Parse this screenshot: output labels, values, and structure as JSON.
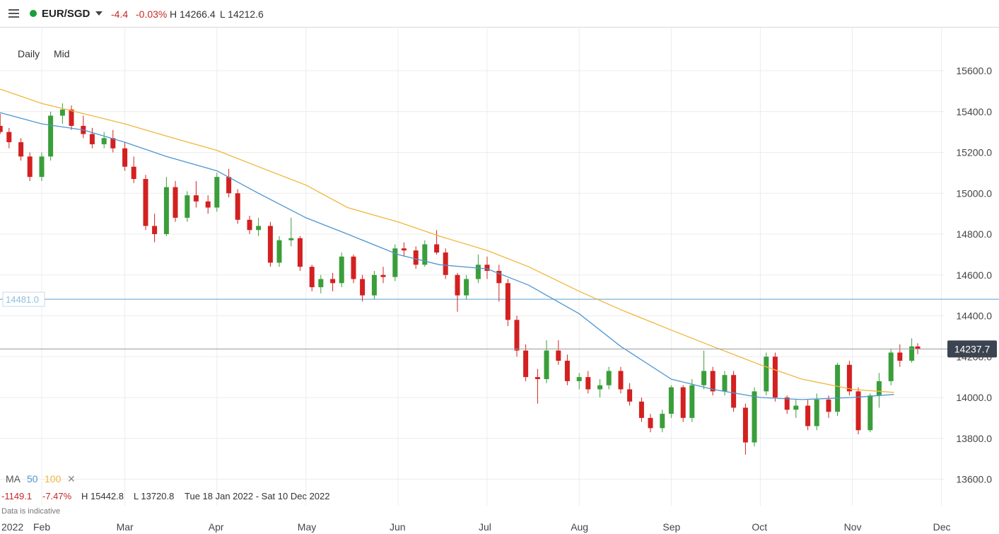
{
  "header": {
    "symbol": "EUR/SGD",
    "change": "-4.4",
    "change_pct": "-0.03%",
    "high": "H 14266.4",
    "low": "L 14212.6"
  },
  "controls": {
    "interval": "Daily",
    "price_type": "Mid"
  },
  "colors": {
    "up": "#3a9e3a",
    "down": "#d32020",
    "ma50": "#4e96d1",
    "ma100": "#f2b53a",
    "hline": "#8fbfe0"
  },
  "legend": {
    "ma_label": "MA",
    "ma50": "50",
    "ma100": "100",
    "remove_icon": "close-icon"
  },
  "stats": {
    "change": "-1149.1",
    "change_pct": "-7.47%",
    "high": "H 15442.8",
    "low": "L 13720.8",
    "range": "Tue 18 Jan 2022 - Sat 10 Dec 2022"
  },
  "note": "Data is indicative",
  "chart_data": {
    "type": "candlestick",
    "ylim": [
      13500,
      15700
    ],
    "y_ticks": [
      "13600.0",
      "13800.0",
      "14000.0",
      "14200.0",
      "14400.0",
      "14600.0",
      "14800.0",
      "15000.0",
      "15200.0",
      "15400.0",
      "15600.0"
    ],
    "x_ticks": [
      "2022",
      "Feb",
      "Mar",
      "Apr",
      "May",
      "Jun",
      "Jul",
      "Aug",
      "Sep",
      "Oct",
      "Nov",
      "Dec"
    ],
    "horizontal_line": {
      "value": 14481.0,
      "label": "14481.0"
    },
    "current_price": {
      "value": 14237.7,
      "label": "14237.7"
    },
    "series": [
      {
        "name": "MA 50",
        "type": "line",
        "values": [
          {
            "x": "2022-01-18",
            "y": 15395
          },
          {
            "x": "2022-02-01",
            "y": 15340
          },
          {
            "x": "2022-02-15",
            "y": 15310
          },
          {
            "x": "2022-03-01",
            "y": 15250
          },
          {
            "x": "2022-03-15",
            "y": 15180
          },
          {
            "x": "2022-04-01",
            "y": 15110
          },
          {
            "x": "2022-04-15",
            "y": 15000
          },
          {
            "x": "2022-05-01",
            "y": 14880
          },
          {
            "x": "2022-05-15",
            "y": 14800
          },
          {
            "x": "2022-06-01",
            "y": 14700
          },
          {
            "x": "2022-06-15",
            "y": 14650
          },
          {
            "x": "2022-07-01",
            "y": 14630
          },
          {
            "x": "2022-07-15",
            "y": 14550
          },
          {
            "x": "2022-08-01",
            "y": 14410
          },
          {
            "x": "2022-08-15",
            "y": 14250
          },
          {
            "x": "2022-09-01",
            "y": 14090
          },
          {
            "x": "2022-09-15",
            "y": 14040
          },
          {
            "x": "2022-10-01",
            "y": 14000
          },
          {
            "x": "2022-10-15",
            "y": 13990
          },
          {
            "x": "2022-11-01",
            "y": 14000
          },
          {
            "x": "2022-11-15",
            "y": 14015
          }
        ]
      },
      {
        "name": "MA 100",
        "type": "line",
        "values": [
          {
            "x": "2022-01-18",
            "y": 15510
          },
          {
            "x": "2022-02-01",
            "y": 15440
          },
          {
            "x": "2022-02-15",
            "y": 15390
          },
          {
            "x": "2022-03-01",
            "y": 15340
          },
          {
            "x": "2022-03-15",
            "y": 15280
          },
          {
            "x": "2022-04-01",
            "y": 15210
          },
          {
            "x": "2022-04-15",
            "y": 15130
          },
          {
            "x": "2022-05-01",
            "y": 15040
          },
          {
            "x": "2022-05-15",
            "y": 14930
          },
          {
            "x": "2022-06-01",
            "y": 14860
          },
          {
            "x": "2022-06-15",
            "y": 14790
          },
          {
            "x": "2022-07-01",
            "y": 14720
          },
          {
            "x": "2022-07-15",
            "y": 14640
          },
          {
            "x": "2022-08-01",
            "y": 14520
          },
          {
            "x": "2022-08-15",
            "y": 14430
          },
          {
            "x": "2022-09-01",
            "y": 14330
          },
          {
            "x": "2022-09-15",
            "y": 14250
          },
          {
            "x": "2022-10-01",
            "y": 14160
          },
          {
            "x": "2022-10-15",
            "y": 14090
          },
          {
            "x": "2022-11-01",
            "y": 14040
          },
          {
            "x": "2022-11-15",
            "y": 14025
          }
        ]
      }
    ],
    "candles": [
      {
        "x": "2022-01-18",
        "o": 15330,
        "h": 15390,
        "l": 15290,
        "c": 15300
      },
      {
        "x": "2022-01-21",
        "o": 15300,
        "h": 15320,
        "l": 15220,
        "c": 15250
      },
      {
        "x": "2022-01-25",
        "o": 15250,
        "h": 15270,
        "l": 15160,
        "c": 15180
      },
      {
        "x": "2022-01-28",
        "o": 15180,
        "h": 15200,
        "l": 15060,
        "c": 15080
      },
      {
        "x": "2022-02-01",
        "o": 15080,
        "h": 15200,
        "l": 15060,
        "c": 15180
      },
      {
        "x": "2022-02-04",
        "o": 15180,
        "h": 15400,
        "l": 15160,
        "c": 15380
      },
      {
        "x": "2022-02-08",
        "o": 15380,
        "h": 15440,
        "l": 15340,
        "c": 15410
      },
      {
        "x": "2022-02-11",
        "o": 15410,
        "h": 15430,
        "l": 15310,
        "c": 15330
      },
      {
        "x": "2022-02-15",
        "o": 15330,
        "h": 15380,
        "l": 15270,
        "c": 15290
      },
      {
        "x": "2022-02-18",
        "o": 15290,
        "h": 15320,
        "l": 15220,
        "c": 15240
      },
      {
        "x": "2022-02-22",
        "o": 15240,
        "h": 15300,
        "l": 15220,
        "c": 15270
      },
      {
        "x": "2022-02-25",
        "o": 15270,
        "h": 15310,
        "l": 15200,
        "c": 15220
      },
      {
        "x": "2022-03-01",
        "o": 15220,
        "h": 15250,
        "l": 15110,
        "c": 15130
      },
      {
        "x": "2022-03-04",
        "o": 15130,
        "h": 15180,
        "l": 15050,
        "c": 15070
      },
      {
        "x": "2022-03-08",
        "o": 15070,
        "h": 15090,
        "l": 14820,
        "c": 14840
      },
      {
        "x": "2022-03-11",
        "o": 14840,
        "h": 14900,
        "l": 14760,
        "c": 14800
      },
      {
        "x": "2022-03-15",
        "o": 14800,
        "h": 15080,
        "l": 14790,
        "c": 15030
      },
      {
        "x": "2022-03-18",
        "o": 15030,
        "h": 15060,
        "l": 14860,
        "c": 14880
      },
      {
        "x": "2022-03-22",
        "o": 14880,
        "h": 15010,
        "l": 14860,
        "c": 14990
      },
      {
        "x": "2022-03-25",
        "o": 14990,
        "h": 15060,
        "l": 14930,
        "c": 14960
      },
      {
        "x": "2022-03-29",
        "o": 14960,
        "h": 14990,
        "l": 14900,
        "c": 14930
      },
      {
        "x": "2022-04-01",
        "o": 14930,
        "h": 15100,
        "l": 14910,
        "c": 15080
      },
      {
        "x": "2022-04-05",
        "o": 15080,
        "h": 15120,
        "l": 14980,
        "c": 15000
      },
      {
        "x": "2022-04-08",
        "o": 15000,
        "h": 15020,
        "l": 14850,
        "c": 14870
      },
      {
        "x": "2022-04-12",
        "o": 14870,
        "h": 14890,
        "l": 14800,
        "c": 14820
      },
      {
        "x": "2022-04-15",
        "o": 14820,
        "h": 14880,
        "l": 14790,
        "c": 14840
      },
      {
        "x": "2022-04-19",
        "o": 14840,
        "h": 14860,
        "l": 14640,
        "c": 14660
      },
      {
        "x": "2022-04-22",
        "o": 14660,
        "h": 14790,
        "l": 14640,
        "c": 14770
      },
      {
        "x": "2022-04-26",
        "o": 14770,
        "h": 14880,
        "l": 14740,
        "c": 14780
      },
      {
        "x": "2022-04-29",
        "o": 14780,
        "h": 14790,
        "l": 14620,
        "c": 14640
      },
      {
        "x": "2022-05-03",
        "o": 14640,
        "h": 14650,
        "l": 14520,
        "c": 14540
      },
      {
        "x": "2022-05-06",
        "o": 14540,
        "h": 14600,
        "l": 14510,
        "c": 14580
      },
      {
        "x": "2022-05-10",
        "o": 14580,
        "h": 14610,
        "l": 14520,
        "c": 14560
      },
      {
        "x": "2022-05-13",
        "o": 14560,
        "h": 14710,
        "l": 14540,
        "c": 14690
      },
      {
        "x": "2022-05-17",
        "o": 14690,
        "h": 14700,
        "l": 14560,
        "c": 14580
      },
      {
        "x": "2022-05-20",
        "o": 14580,
        "h": 14600,
        "l": 14470,
        "c": 14500
      },
      {
        "x": "2022-05-24",
        "o": 14500,
        "h": 14620,
        "l": 14480,
        "c": 14600
      },
      {
        "x": "2022-05-27",
        "o": 14600,
        "h": 14640,
        "l": 14560,
        "c": 14590
      },
      {
        "x": "2022-05-31",
        "o": 14590,
        "h": 14750,
        "l": 14570,
        "c": 14730
      },
      {
        "x": "2022-06-03",
        "o": 14730,
        "h": 14760,
        "l": 14690,
        "c": 14720
      },
      {
        "x": "2022-06-07",
        "o": 14720,
        "h": 14740,
        "l": 14630,
        "c": 14650
      },
      {
        "x": "2022-06-10",
        "o": 14650,
        "h": 14770,
        "l": 14640,
        "c": 14750
      },
      {
        "x": "2022-06-14",
        "o": 14750,
        "h": 14820,
        "l": 14700,
        "c": 14710
      },
      {
        "x": "2022-06-17",
        "o": 14710,
        "h": 14730,
        "l": 14580,
        "c": 14600
      },
      {
        "x": "2022-06-21",
        "o": 14600,
        "h": 14610,
        "l": 14420,
        "c": 14500
      },
      {
        "x": "2022-06-24",
        "o": 14500,
        "h": 14600,
        "l": 14480,
        "c": 14580
      },
      {
        "x": "2022-06-28",
        "o": 14580,
        "h": 14700,
        "l": 14560,
        "c": 14650
      },
      {
        "x": "2022-07-01",
        "o": 14650,
        "h": 14690,
        "l": 14580,
        "c": 14620
      },
      {
        "x": "2022-07-05",
        "o": 14620,
        "h": 14650,
        "l": 14470,
        "c": 14560
      },
      {
        "x": "2022-07-08",
        "o": 14560,
        "h": 14580,
        "l": 14350,
        "c": 14380
      },
      {
        "x": "2022-07-11",
        "o": 14380,
        "h": 14400,
        "l": 14200,
        "c": 14230
      },
      {
        "x": "2022-07-14",
        "o": 14230,
        "h": 14260,
        "l": 14080,
        "c": 14100
      },
      {
        "x": "2022-07-18",
        "o": 14100,
        "h": 14140,
        "l": 13970,
        "c": 14090
      },
      {
        "x": "2022-07-21",
        "o": 14090,
        "h": 14280,
        "l": 14070,
        "c": 14230
      },
      {
        "x": "2022-07-25",
        "o": 14230,
        "h": 14280,
        "l": 14160,
        "c": 14180
      },
      {
        "x": "2022-07-28",
        "o": 14180,
        "h": 14210,
        "l": 14060,
        "c": 14080
      },
      {
        "x": "2022-08-01",
        "o": 14080,
        "h": 14120,
        "l": 14040,
        "c": 14100
      },
      {
        "x": "2022-08-04",
        "o": 14100,
        "h": 14130,
        "l": 14020,
        "c": 14040
      },
      {
        "x": "2022-08-08",
        "o": 14040,
        "h": 14090,
        "l": 14000,
        "c": 14060
      },
      {
        "x": "2022-08-11",
        "o": 14060,
        "h": 14150,
        "l": 14040,
        "c": 14130
      },
      {
        "x": "2022-08-15",
        "o": 14130,
        "h": 14150,
        "l": 14020,
        "c": 14040
      },
      {
        "x": "2022-08-18",
        "o": 14040,
        "h": 14070,
        "l": 13960,
        "c": 13980
      },
      {
        "x": "2022-08-22",
        "o": 13980,
        "h": 14000,
        "l": 13880,
        "c": 13900
      },
      {
        "x": "2022-08-25",
        "o": 13900,
        "h": 13920,
        "l": 13830,
        "c": 13850
      },
      {
        "x": "2022-08-29",
        "o": 13850,
        "h": 13940,
        "l": 13830,
        "c": 13920
      },
      {
        "x": "2022-09-01",
        "o": 13920,
        "h": 14060,
        "l": 13900,
        "c": 14050
      },
      {
        "x": "2022-09-05",
        "o": 14050,
        "h": 14060,
        "l": 13880,
        "c": 13900
      },
      {
        "x": "2022-09-08",
        "o": 13900,
        "h": 14090,
        "l": 13880,
        "c": 14060
      },
      {
        "x": "2022-09-12",
        "o": 14060,
        "h": 14230,
        "l": 14040,
        "c": 14130
      },
      {
        "x": "2022-09-15",
        "o": 14130,
        "h": 14150,
        "l": 14010,
        "c": 14030
      },
      {
        "x": "2022-09-19",
        "o": 14030,
        "h": 14130,
        "l": 14010,
        "c": 14110
      },
      {
        "x": "2022-09-22",
        "o": 14110,
        "h": 14130,
        "l": 13930,
        "c": 13950
      },
      {
        "x": "2022-09-26",
        "o": 13950,
        "h": 13970,
        "l": 13720,
        "c": 13780
      },
      {
        "x": "2022-09-29",
        "o": 13780,
        "h": 14050,
        "l": 13760,
        "c": 14030
      },
      {
        "x": "2022-10-03",
        "o": 14030,
        "h": 14220,
        "l": 14010,
        "c": 14200
      },
      {
        "x": "2022-10-06",
        "o": 14200,
        "h": 14220,
        "l": 13980,
        "c": 14000
      },
      {
        "x": "2022-10-10",
        "o": 14000,
        "h": 14010,
        "l": 13920,
        "c": 13940
      },
      {
        "x": "2022-10-13",
        "o": 13940,
        "h": 13990,
        "l": 13900,
        "c": 13960
      },
      {
        "x": "2022-10-17",
        "o": 13960,
        "h": 13990,
        "l": 13840,
        "c": 13860
      },
      {
        "x": "2022-10-20",
        "o": 13860,
        "h": 14020,
        "l": 13840,
        "c": 13990
      },
      {
        "x": "2022-10-24",
        "o": 13990,
        "h": 14010,
        "l": 13900,
        "c": 13930
      },
      {
        "x": "2022-10-27",
        "o": 13930,
        "h": 14170,
        "l": 13910,
        "c": 14160
      },
      {
        "x": "2022-10-31",
        "o": 14160,
        "h": 14180,
        "l": 14010,
        "c": 14030
      },
      {
        "x": "2022-11-03",
        "o": 14030,
        "h": 14050,
        "l": 13820,
        "c": 13840
      },
      {
        "x": "2022-11-07",
        "o": 13840,
        "h": 14020,
        "l": 13830,
        "c": 14010
      },
      {
        "x": "2022-11-10",
        "o": 14010,
        "h": 14120,
        "l": 13950,
        "c": 14080
      },
      {
        "x": "2022-11-14",
        "o": 14080,
        "h": 14240,
        "l": 14060,
        "c": 14220
      },
      {
        "x": "2022-11-17",
        "o": 14220,
        "h": 14260,
        "l": 14150,
        "c": 14180
      },
      {
        "x": "2022-11-21",
        "o": 14180,
        "h": 14290,
        "l": 14170,
        "c": 14250
      },
      {
        "x": "2022-11-23",
        "o": 14250,
        "h": 14266,
        "l": 14212,
        "c": 14238
      }
    ]
  }
}
